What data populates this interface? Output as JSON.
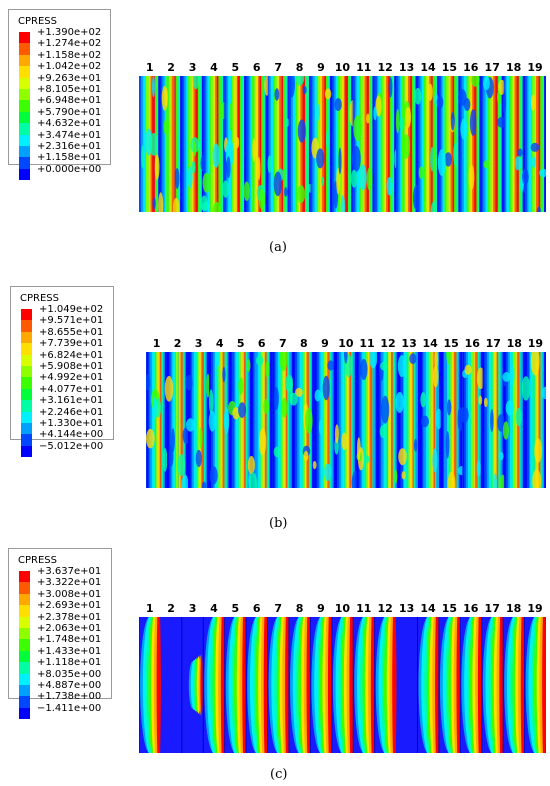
{
  "panels": [
    {
      "id": "a",
      "legend_title": "CPRESS",
      "legend_values": [
        "+1.390e+02",
        "+1.274e+02",
        "+1.158e+02",
        "+1.042e+02",
        "+9.263e+01",
        "+8.105e+01",
        "+6.948e+01",
        "+5.790e+01",
        "+4.632e+01",
        "+3.474e+01",
        "+2.316e+01",
        "+1.158e+01",
        "+0.000e+00"
      ],
      "caption": "(a)",
      "column_labels": [
        "1",
        "2",
        "3",
        "4",
        "5",
        "6",
        "7",
        "8",
        "9",
        "10",
        "11",
        "12",
        "13",
        "14",
        "15",
        "16",
        "17",
        "18",
        "19"
      ]
    },
    {
      "id": "b",
      "legend_title": "CPRESS",
      "legend_values": [
        "+1.049e+02",
        "+9.571e+01",
        "+8.655e+01",
        "+7.739e+01",
        "+6.824e+01",
        "+5.908e+01",
        "+4.992e+01",
        "+4.077e+01",
        "+3.161e+01",
        "+2.246e+01",
        "+1.330e+01",
        "+4.144e+00",
        "−5.012e+00"
      ],
      "caption": "(b)",
      "column_labels": [
        "1",
        "2",
        "3",
        "4",
        "5",
        "6",
        "7",
        "8",
        "9",
        "10",
        "11",
        "12",
        "13",
        "14",
        "15",
        "16",
        "17",
        "18",
        "19"
      ]
    },
    {
      "id": "c",
      "legend_title": "CPRESS",
      "legend_values": [
        "+3.637e+01",
        "+3.322e+01",
        "+3.008e+01",
        "+2.693e+01",
        "+2.378e+01",
        "+2.063e+01",
        "+1.748e+01",
        "+1.433e+01",
        "+1.118e+01",
        "+8.035e+00",
        "+4.887e+00",
        "+1.738e+00",
        "−1.411e+00"
      ],
      "caption": "(c)",
      "column_labels": [
        "1",
        "2",
        "3",
        "4",
        "5",
        "6",
        "7",
        "8",
        "9",
        "10",
        "11",
        "12",
        "13",
        "14",
        "15",
        "16",
        "17",
        "18",
        "19"
      ]
    }
  ],
  "colors": {
    "scale": [
      "#ff0000",
      "#ff5a00",
      "#ffa800",
      "#ffdf00",
      "#d8ff00",
      "#8fff00",
      "#3cff00",
      "#00ff3a",
      "#00ffa5",
      "#00f0ff",
      "#00a0ff",
      "#0047ff",
      "#0000ff"
    ],
    "background_blue": "#0e25e6"
  }
}
